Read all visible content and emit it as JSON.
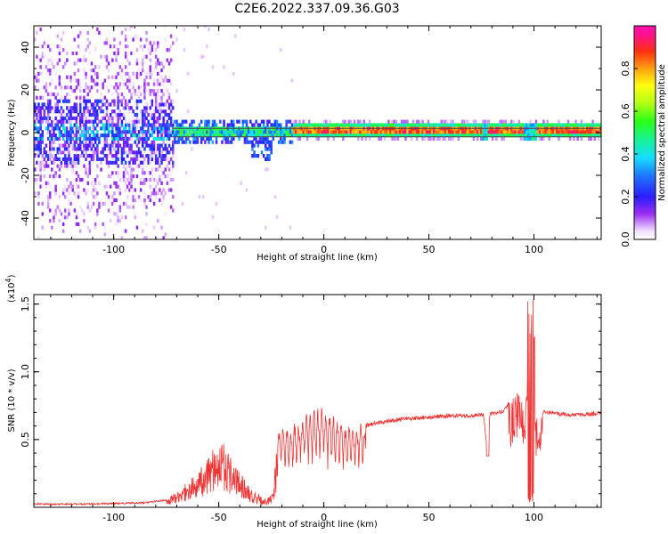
{
  "title": "C2E6.2022.337.09.36.G03",
  "chart_data": [
    {
      "type": "heatmap",
      "xlabel": "Height of straight line (km)",
      "ylabel": "Frequency (Hz)",
      "xlim": [
        -138,
        132
      ],
      "ylim": [
        -50,
        50
      ],
      "x_ticks": [
        -100,
        -50,
        0,
        50,
        100
      ],
      "y_ticks": [
        -40,
        -20,
        0,
        20,
        40
      ],
      "colorbar": {
        "label": "Normalized spectral amplitude",
        "range": [
          0,
          1
        ],
        "ticks": [
          "0.0",
          "0.2",
          "0.4",
          "0.6",
          "0.8"
        ],
        "tick_values": [
          0.0,
          0.2,
          0.4,
          0.6,
          0.8
        ]
      },
      "reference_lines_hz": [
        2,
        -2
      ],
      "grid": false
    },
    {
      "type": "line",
      "xlabel": "Height of straight line (km)",
      "ylabel": "SNR (10 * v/v)",
      "y_multiplier": "(x10",
      "y_multiplier_exp": "4",
      "y_multiplier_close": ")",
      "xlim": [
        -138,
        132
      ],
      "ylim": [
        0,
        1.57
      ],
      "x_ticks": [
        -100,
        -50,
        0,
        50,
        100
      ],
      "y_ticks": [
        "0.5",
        "1.0",
        "1.5"
      ],
      "y_tick_values": [
        0.5,
        1.0,
        1.5
      ],
      "series_color": "#ee3333",
      "grid": false,
      "envelope_points": [
        {
          "x": -138,
          "y": 0.03
        },
        {
          "x": -110,
          "y": 0.03
        },
        {
          "x": -85,
          "y": 0.04
        },
        {
          "x": -75,
          "y": 0.06
        },
        {
          "x": -68,
          "y": 0.15
        },
        {
          "x": -60,
          "y": 0.25
        },
        {
          "x": -53,
          "y": 0.45
        },
        {
          "x": -48,
          "y": 0.5
        },
        {
          "x": -42,
          "y": 0.3
        },
        {
          "x": -35,
          "y": 0.15
        },
        {
          "x": -28,
          "y": 0.06
        },
        {
          "x": -24,
          "y": 0.1
        },
        {
          "x": -22,
          "y": 0.6
        },
        {
          "x": -16,
          "y": 0.6
        },
        {
          "x": -8,
          "y": 0.7
        },
        {
          "x": 0,
          "y": 0.75
        },
        {
          "x": 10,
          "y": 0.62
        },
        {
          "x": 20,
          "y": 0.62
        },
        {
          "x": 30,
          "y": 0.65
        },
        {
          "x": 40,
          "y": 0.67
        },
        {
          "x": 50,
          "y": 0.68
        },
        {
          "x": 60,
          "y": 0.69
        },
        {
          "x": 70,
          "y": 0.69
        },
        {
          "x": 76,
          "y": 0.7
        },
        {
          "x": 78,
          "y": 0.4
        },
        {
          "x": 79,
          "y": 0.7
        },
        {
          "x": 85,
          "y": 0.72
        },
        {
          "x": 92,
          "y": 0.85
        },
        {
          "x": 96,
          "y": 0.75
        },
        {
          "x": 99,
          "y": 1.55
        },
        {
          "x": 101,
          "y": 0.7
        },
        {
          "x": 105,
          "y": 0.72
        },
        {
          "x": 115,
          "y": 0.7
        },
        {
          "x": 125,
          "y": 0.7
        },
        {
          "x": 132,
          "y": 0.71
        }
      ]
    }
  ]
}
